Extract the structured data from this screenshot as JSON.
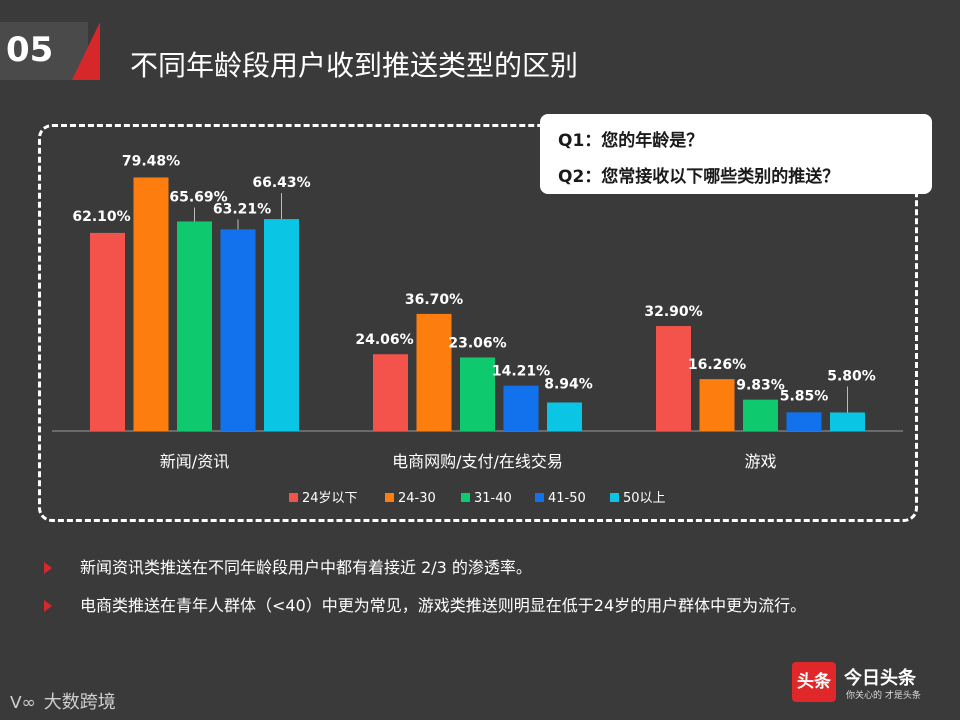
{
  "header": {
    "number": "05",
    "title": "不同年龄段用户收到推送类型的区别"
  },
  "questions": {
    "q1": "Q1：您的年龄是？",
    "q2": "Q2：您常接收以下哪些类别的推送？"
  },
  "colors": {
    "accent_red": "#d6272a",
    "background": "#3a3a3a"
  },
  "chart_data": {
    "type": "bar",
    "categories": [
      "新闻/资讯",
      "电商网购/支付/在线交易",
      "游戏"
    ],
    "series": [
      {
        "name": "24岁以下",
        "color": "#f4534b",
        "values": [
          62.1,
          24.06,
          32.9
        ],
        "labels": [
          "62.10%",
          "24.06%",
          "32.90%"
        ]
      },
      {
        "name": "24-30",
        "color": "#fd7e0e",
        "values": [
          79.48,
          36.7,
          16.26
        ],
        "labels": [
          "79.48%",
          "36.70%",
          "16.26%"
        ]
      },
      {
        "name": "31-40",
        "color": "#0ec96d",
        "values": [
          65.69,
          23.06,
          9.83
        ],
        "labels": [
          "65.69%",
          "23.06%",
          "9.83%"
        ]
      },
      {
        "name": "41-50",
        "color": "#1271ec",
        "values": [
          63.21,
          14.21,
          5.85
        ],
        "labels": [
          "63.21%",
          "14.21%",
          "5.85%"
        ]
      },
      {
        "name": "50以上",
        "color": "#0ac6e4",
        "values": [
          66.43,
          8.94,
          5.8
        ],
        "labels": [
          "66.43%",
          "8.94%",
          "5.80%"
        ]
      }
    ],
    "ylim": [
      0,
      80
    ],
    "grid": false,
    "legend_position": "bottom"
  },
  "bullets": [
    "新闻资讯类推送在不同年龄段用户中都有着接近 2/3 的渗透率。",
    "电商类推送在青年人群体（<40）中更为常见，游戏类推送则明显在低于24岁的用户群体中更为流行。"
  ],
  "footer": {
    "left_brand": "大数跨境",
    "left_symbol": "ᐯ∞",
    "badge_text": "头条",
    "app_name": "今日头条",
    "slogan": "你关心的 才是头条"
  }
}
